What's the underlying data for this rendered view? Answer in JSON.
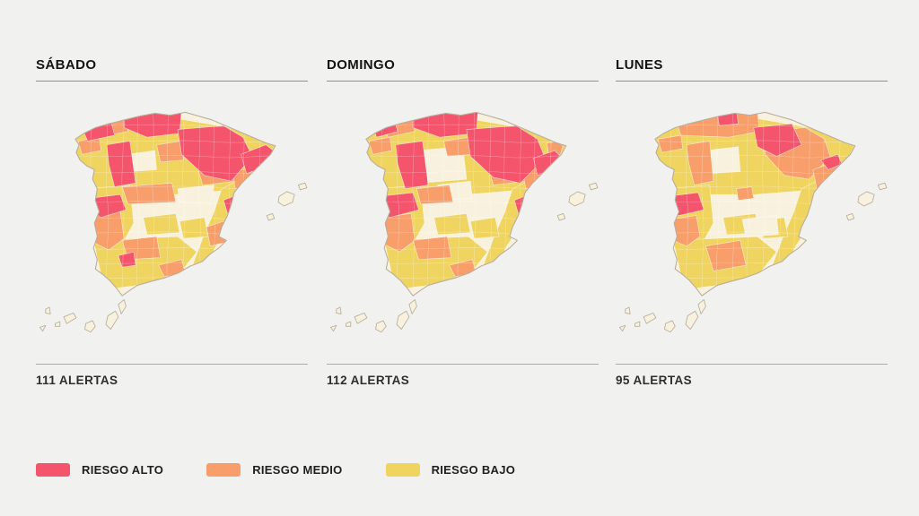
{
  "page": {
    "background": "#F1F1EF"
  },
  "days": [
    {
      "label": "SÁBADO",
      "alerts_label": "111 ALERTAS",
      "alerts_count": 111,
      "patches": [
        {
          "k": "low",
          "p": "44,28 124,18 204,32 252,50 236,80 198,98 148,102 94,102 58,98 44,62"
        },
        {
          "k": "low",
          "p": "196,96 216,86 206,132 190,156 182,174 164,180 176,148 188,120"
        },
        {
          "k": "low",
          "p": "58,96 100,92 104,132 92,154 62,152 63,118"
        },
        {
          "k": "low",
          "p": "62,150 150,146 170,162 148,190 116,196 86,200 70,186"
        },
        {
          "k": "low",
          "p": "114,126 148,122 152,142 118,144"
        },
        {
          "k": "low",
          "p": "152,130 178,126 182,146 156,148"
        },
        {
          "k": "base",
          "p": "98,60 126,56 128,76 100,78"
        },
        {
          "k": "base",
          "p": "150,96 188,92 184,112 152,110"
        },
        {
          "k": "med",
          "p": "62,26 96,22 98,36 68,42"
        },
        {
          "k": "med",
          "p": "46,46 68,42 70,56 50,60"
        },
        {
          "k": "med",
          "p": "128,50 154,46 156,66 132,68"
        },
        {
          "k": "med",
          "p": "168,64 208,60 212,88 176,92"
        },
        {
          "k": "med",
          "p": "208,78 228,74 224,94 210,96"
        },
        {
          "k": "med",
          "p": "92,94 144,90 148,110 98,112"
        },
        {
          "k": "med",
          "p": "58,124 90,120 94,148 78,160 62,152"
        },
        {
          "k": "med",
          "p": "92,150 128,146 132,168 98,170"
        },
        {
          "k": "med",
          "p": "130,176 154,170 158,184 136,188"
        },
        {
          "k": "med",
          "p": "180,136 198,130 200,152 184,156"
        },
        {
          "k": "high",
          "p": "94,18 154,14 152,38 118,42 94,32"
        },
        {
          "k": "high",
          "p": "48,28 80,24 84,40 56,46"
        },
        {
          "k": "high",
          "p": "76,50 100,46 106,90 84,94 78,70"
        },
        {
          "k": "high",
          "p": "150,34 198,30 218,42 228,62 206,88 178,82 154,60"
        },
        {
          "k": "high",
          "p": "216,60 242,50 250,56 238,74 222,80"
        },
        {
          "k": "high",
          "p": "58,106 90,102 96,118 70,126 60,120"
        },
        {
          "k": "high",
          "p": "198,108 208,104 212,120 202,122"
        },
        {
          "k": "high",
          "p": "88,166 104,162 106,176 92,178"
        }
      ]
    },
    {
      "label": "DOMINGO",
      "alerts_label": "112 ALERTAS",
      "alerts_count": 112,
      "patches": [
        {
          "k": "low",
          "p": "44,28 124,18 204,32 252,50 236,80 198,98 148,102 94,102 58,98 44,62"
        },
        {
          "k": "low",
          "p": "196,96 216,86 206,132 190,156 182,174 164,180 176,148 188,120"
        },
        {
          "k": "low",
          "p": "58,96 100,92 104,132 92,154 62,152 63,118"
        },
        {
          "k": "low",
          "p": "62,150 150,146 170,162 148,190 116,196 86,200 70,186"
        },
        {
          "k": "low",
          "p": "114,126 148,122 152,142 118,144"
        },
        {
          "k": "low",
          "p": "152,130 178,126 182,146 156,148"
        },
        {
          "k": "base",
          "p": "96,56 144,52 148,86 100,90"
        },
        {
          "k": "base",
          "p": "118,92 152,88 154,106 120,108"
        },
        {
          "k": "med",
          "p": "60,26 92,22 94,36 66,42"
        },
        {
          "k": "med",
          "p": "46,46 68,42 70,56 50,60"
        },
        {
          "k": "med",
          "p": "124,46 152,42 154,60 128,62"
        },
        {
          "k": "med",
          "p": "168,64 208,60 212,88 176,92"
        },
        {
          "k": "med",
          "p": "232,48 250,46 246,60 234,62"
        },
        {
          "k": "med",
          "p": "206,76 232,70 228,92 210,96"
        },
        {
          "k": "med",
          "p": "96,96 130,92 134,110 100,112"
        },
        {
          "k": "med",
          "p": "58,126 90,122 94,150 78,162 62,154"
        },
        {
          "k": "med",
          "p": "92,150 128,146 132,168 98,170"
        },
        {
          "k": "med",
          "p": "130,176 154,170 158,184 136,188"
        },
        {
          "k": "high",
          "p": "92,18 160,14 158,38 120,42 92,32"
        },
        {
          "k": "high",
          "p": "48,26 72,22 76,36 54,42"
        },
        {
          "k": "high",
          "p": "74,50 102,46 108,92 84,96 76,70"
        },
        {
          "k": "high",
          "p": "148,34 200,30 222,44 230,64 204,90 176,84 152,62"
        },
        {
          "k": "high",
          "p": "218,64 240,56 246,62 234,78 222,82"
        },
        {
          "k": "high",
          "p": "56,104 92,100 98,118 68,126 58,120"
        },
        {
          "k": "high",
          "p": "198,108 208,104 212,120 202,122"
        }
      ]
    },
    {
      "label": "LUNES",
      "alerts_label": "95 ALERTAS",
      "alerts_count": 95,
      "patches": [
        {
          "k": "low",
          "p": "44,28 124,18 204,32 252,50 236,80 198,98 148,102 94,102 58,98 44,62"
        },
        {
          "k": "low",
          "p": "196,96 216,86 206,132 190,156 182,174 164,180 176,148 188,120"
        },
        {
          "k": "low",
          "p": "58,96 100,92 104,132 92,154 62,152 63,118"
        },
        {
          "k": "low",
          "p": "62,150 150,146 170,162 148,190 116,196 86,200 70,186"
        },
        {
          "k": "low",
          "p": "114,126 148,122 152,142 118,144"
        },
        {
          "k": "low",
          "p": "152,130 178,126 182,146 156,148"
        },
        {
          "k": "base",
          "p": "96,56 130,52 132,78 100,80"
        },
        {
          "k": "base",
          "p": "134,128 170,124 172,144 138,146"
        },
        {
          "k": "med",
          "p": "64,22 150,14 152,36 120,42 70,40"
        },
        {
          "k": "med",
          "p": "46,44 70,40 72,54 50,58"
        },
        {
          "k": "med",
          "p": "76,50 100,46 104,88 84,92 78,68"
        },
        {
          "k": "med",
          "p": "156,36 200,32 220,44 226,62 204,86 178,82 158,60"
        },
        {
          "k": "med",
          "p": "208,76 236,66 242,72 228,92 212,96"
        },
        {
          "k": "med",
          "p": "128,96 144,94 146,106 130,108"
        },
        {
          "k": "med",
          "p": "60,128 86,124 90,146 76,156 62,150"
        },
        {
          "k": "med",
          "p": "96,156 132,150 138,176 104,182"
        },
        {
          "k": "high",
          "p": "108,16 128,14 130,28 110,30"
        },
        {
          "k": "high",
          "p": "146,32 186,28 196,50 170,62 150,52"
        },
        {
          "k": "high",
          "p": "216,66 234,60 238,70 224,76"
        },
        {
          "k": "high",
          "p": "56,104 88,100 94,118 68,124 58,118"
        }
      ]
    }
  ],
  "legend": {
    "items": [
      {
        "key": "high",
        "label": "RIESGO ALTO",
        "color": "#F4546C"
      },
      {
        "key": "medium",
        "label": "RIESGO MEDIO",
        "color": "#F89E6B"
      },
      {
        "key": "low",
        "label": "RIESGO BAJO",
        "color": "#EFD45F"
      }
    ]
  },
  "map": {
    "colors": {
      "high": "#F4546C",
      "med": "#F89E6B",
      "low": "#EFD45F",
      "base": "#F8F1DE",
      "outline": "#B7AD9C",
      "inner_border": "#FFFFFF"
    }
  },
  "chart_data": {
    "type": "heatmap",
    "subtype": "choropleth-map-small-multiples",
    "region": "España",
    "days": [
      {
        "label": "SÁBADO",
        "alerts": 111
      },
      {
        "label": "DOMINGO",
        "alerts": 112
      },
      {
        "label": "LUNES",
        "alerts": 95
      }
    ],
    "legend_entries": [
      "RIESGO ALTO",
      "RIESGO MEDIO",
      "RIESGO BAJO"
    ],
    "legend_position": "bottom-left",
    "notes": "Three maps of Spain (incl. Balearic and Canary Islands) coloured by fire-risk level per comarca; risk concentrated in the north and northeast, decreasing by Monday."
  }
}
